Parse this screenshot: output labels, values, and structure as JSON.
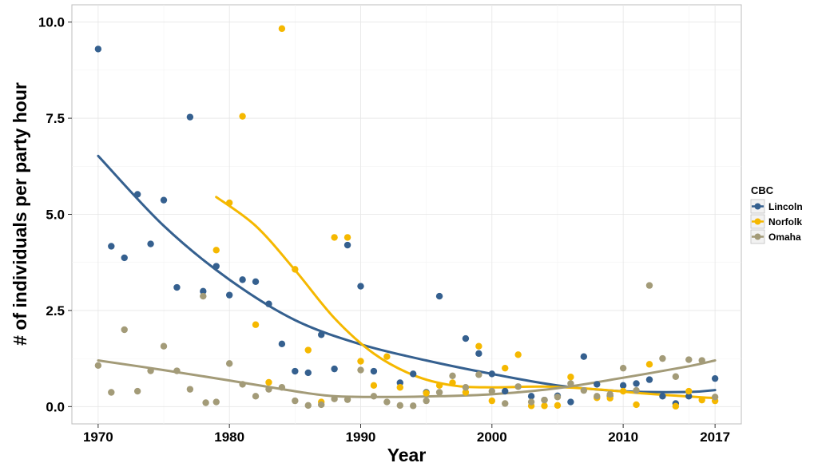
{
  "chart_data": {
    "type": "scatter",
    "title": "",
    "xlabel": "Year",
    "ylabel": "# of individuals per party hour",
    "xlim": [
      1968,
      2019
    ],
    "ylim": [
      -0.45,
      10.45
    ],
    "x_ticks": [
      1970,
      1980,
      1990,
      2000,
      2010,
      2017
    ],
    "y_ticks": [
      0.0,
      2.5,
      5.0,
      7.5,
      10.0
    ],
    "y_tick_labels": [
      "0.0",
      "2.5",
      "5.0",
      "7.5",
      "10.0"
    ],
    "grid": true,
    "legend": {
      "title": "CBC",
      "position": "right"
    },
    "series": [
      {
        "name": "Lincoln",
        "color": "#35608f",
        "points": [
          [
            1970,
            9.3
          ],
          [
            1971,
            4.17
          ],
          [
            1972,
            3.87
          ],
          [
            1973,
            5.52
          ],
          [
            1974,
            4.23
          ],
          [
            1975,
            5.37
          ],
          [
            1976,
            3.1
          ],
          [
            1977,
            7.53
          ],
          [
            1978,
            3.0
          ],
          [
            1979,
            3.65
          ],
          [
            1980,
            2.9
          ],
          [
            1981,
            3.3
          ],
          [
            1982,
            3.25
          ],
          [
            1983,
            2.67
          ],
          [
            1984,
            1.63
          ],
          [
            1985,
            0.92
          ],
          [
            1986,
            0.88
          ],
          [
            1987,
            1.87
          ],
          [
            1988,
            0.98
          ],
          [
            1989,
            4.2
          ],
          [
            1990,
            3.13
          ],
          [
            1991,
            0.92
          ],
          [
            1993,
            0.62
          ],
          [
            1994,
            0.85
          ],
          [
            1995,
            0.37
          ],
          [
            1996,
            2.87
          ],
          [
            1998,
            1.77
          ],
          [
            1999,
            1.38
          ],
          [
            2000,
            0.85
          ],
          [
            2001,
            0.4
          ],
          [
            2003,
            0.27
          ],
          [
            2004,
            0.17
          ],
          [
            2005,
            0.28
          ],
          [
            2006,
            0.12
          ],
          [
            2007,
            1.3
          ],
          [
            2008,
            0.58
          ],
          [
            2009,
            0.28
          ],
          [
            2010,
            0.55
          ],
          [
            2011,
            0.6
          ],
          [
            2012,
            0.7
          ],
          [
            2013,
            0.27
          ],
          [
            2014,
            0.08
          ],
          [
            2015,
            0.27
          ],
          [
            2017,
            0.73
          ]
        ],
        "trend": [
          [
            1970,
            6.52
          ],
          [
            1975,
            4.7
          ],
          [
            1980,
            3.3
          ],
          [
            1985,
            2.25
          ],
          [
            1990,
            1.62
          ],
          [
            1995,
            1.2
          ],
          [
            2000,
            0.85
          ],
          [
            2005,
            0.55
          ],
          [
            2010,
            0.4
          ],
          [
            2015,
            0.38
          ],
          [
            2017,
            0.43
          ]
        ]
      },
      {
        "name": "Norfolk",
        "color": "#f5b800",
        "points": [
          [
            1979,
            4.07
          ],
          [
            1980,
            5.3
          ],
          [
            1981,
            7.55
          ],
          [
            1982,
            2.13
          ],
          [
            1983,
            0.63
          ],
          [
            1984,
            9.83
          ],
          [
            1985,
            3.57
          ],
          [
            1986,
            1.47
          ],
          [
            1987,
            0.12
          ],
          [
            1988,
            4.4
          ],
          [
            1989,
            4.4
          ],
          [
            1990,
            1.18
          ],
          [
            1991,
            0.55
          ],
          [
            1992,
            1.3
          ],
          [
            1993,
            0.5
          ],
          [
            1995,
            0.35
          ],
          [
            1996,
            0.55
          ],
          [
            1997,
            0.62
          ],
          [
            1998,
            0.37
          ],
          [
            1999,
            1.57
          ],
          [
            2000,
            0.15
          ],
          [
            2001,
            1.0
          ],
          [
            2002,
            1.35
          ],
          [
            2003,
            0.02
          ],
          [
            2004,
            0.02
          ],
          [
            2005,
            0.03
          ],
          [
            2006,
            0.77
          ],
          [
            2008,
            0.23
          ],
          [
            2009,
            0.22
          ],
          [
            2010,
            0.4
          ],
          [
            2011,
            0.05
          ],
          [
            2012,
            1.1
          ],
          [
            2014,
            0.01
          ],
          [
            2015,
            0.4
          ],
          [
            2016,
            0.17
          ],
          [
            2017,
            0.15
          ]
        ],
        "trend": [
          [
            1979,
            5.45
          ],
          [
            1982,
            4.7
          ],
          [
            1985,
            3.55
          ],
          [
            1988,
            2.3
          ],
          [
            1991,
            1.38
          ],
          [
            1994,
            0.82
          ],
          [
            1997,
            0.55
          ],
          [
            2000,
            0.5
          ],
          [
            2004,
            0.52
          ],
          [
            2008,
            0.45
          ],
          [
            2012,
            0.33
          ],
          [
            2017,
            0.22
          ]
        ]
      },
      {
        "name": "Omaha",
        "color": "#a39b78",
        "points": [
          [
            1970,
            1.07
          ],
          [
            1971,
            0.37
          ],
          [
            1972,
            2.0
          ],
          [
            1973,
            0.4
          ],
          [
            1974,
            0.93
          ],
          [
            1975,
            1.57
          ],
          [
            1976,
            0.93
          ],
          [
            1977,
            0.45
          ],
          [
            1978,
            2.87
          ],
          [
            1978.2,
            0.1
          ],
          [
            1979,
            0.12
          ],
          [
            1980,
            1.12
          ],
          [
            1981,
            0.58
          ],
          [
            1982,
            0.27
          ],
          [
            1983,
            0.45
          ],
          [
            1984,
            0.5
          ],
          [
            1985,
            0.15
          ],
          [
            1986,
            0.03
          ],
          [
            1987,
            0.05
          ],
          [
            1988,
            0.2
          ],
          [
            1989,
            0.18
          ],
          [
            1990,
            0.95
          ],
          [
            1991,
            0.27
          ],
          [
            1992,
            0.12
          ],
          [
            1993,
            0.03
          ],
          [
            1994,
            0.02
          ],
          [
            1995,
            0.15
          ],
          [
            1996,
            0.37
          ],
          [
            1997,
            0.8
          ],
          [
            1998,
            0.5
          ],
          [
            1999,
            0.83
          ],
          [
            2000,
            0.4
          ],
          [
            2001,
            0.08
          ],
          [
            2002,
            0.52
          ],
          [
            2003,
            0.12
          ],
          [
            2004,
            0.17
          ],
          [
            2005,
            0.25
          ],
          [
            2006,
            0.6
          ],
          [
            2007,
            0.42
          ],
          [
            2008,
            0.27
          ],
          [
            2009,
            0.32
          ],
          [
            2010,
            1.0
          ],
          [
            2011,
            0.42
          ],
          [
            2012,
            3.15
          ],
          [
            2013,
            1.25
          ],
          [
            2014,
            0.78
          ],
          [
            2015,
            1.22
          ],
          [
            2016,
            1.2
          ],
          [
            2017,
            0.25
          ]
        ],
        "trend": [
          [
            1970,
            1.2
          ],
          [
            1975,
            0.95
          ],
          [
            1980,
            0.68
          ],
          [
            1985,
            0.4
          ],
          [
            1988,
            0.27
          ],
          [
            1992,
            0.25
          ],
          [
            1996,
            0.27
          ],
          [
            2000,
            0.32
          ],
          [
            2005,
            0.48
          ],
          [
            2010,
            0.75
          ],
          [
            2015,
            1.05
          ],
          [
            2017,
            1.2
          ]
        ]
      }
    ]
  }
}
